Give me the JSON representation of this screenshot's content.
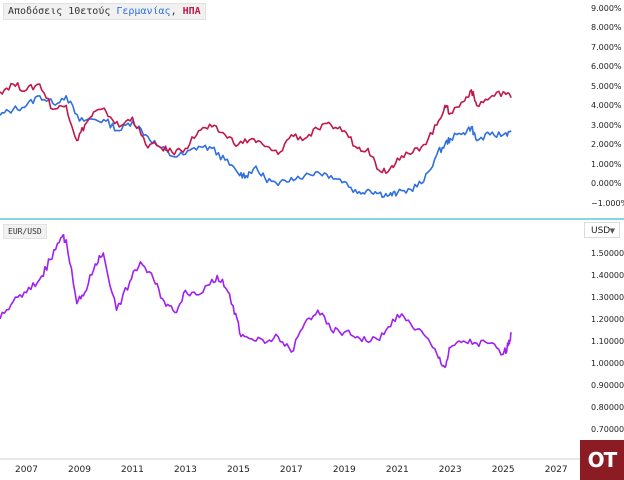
{
  "title": {
    "prefix": "Αποδόσεις 10ετούς ",
    "germany": "Γερμανίας",
    "separator": ", ",
    "usa": "ΗΠΑ"
  },
  "pair_label": "EUR/USD",
  "currency_select": {
    "value": "USD"
  },
  "logo_text": "OT",
  "colors": {
    "germany": "#2f6fe0",
    "usa": "#c0184a",
    "eurusd": "#a020f0",
    "separator_line": "#5bc8d6",
    "logo_bg": "#8c1c24"
  },
  "chart_data": [
    {
      "type": "line",
      "title": "Αποδόσεις 10ετούς Γερμανίας, ΗΠΑ",
      "y_tick_labels": [
        "9.000%",
        "8.000%",
        "7.000%",
        "6.000%",
        "5.000%",
        "4.000%",
        "3.000%",
        "2.000%",
        "1.000%",
        "0.000%",
        "−1.000%"
      ],
      "ylim": [
        -1.1,
        9.3
      ],
      "y_unit": "%",
      "series": [
        {
          "name": "Γερμανίας",
          "color": "#2f6fe0",
          "x": [
            2006.0,
            2006.5,
            2007.0,
            2007.5,
            2008.0,
            2008.5,
            2009.0,
            2009.5,
            2010.0,
            2010.5,
            2011.0,
            2011.5,
            2012.0,
            2012.5,
            2013.0,
            2013.5,
            2014.0,
            2014.5,
            2015.0,
            2015.3,
            2015.6,
            2016.0,
            2016.5,
            2017.0,
            2017.5,
            2018.0,
            2018.5,
            2019.0,
            2019.5,
            2019.9,
            2020.3,
            2020.7,
            2021.0,
            2021.5,
            2022.0,
            2022.5,
            2022.8,
            2023.0,
            2023.5,
            2023.8,
            2024.0,
            2024.5,
            2025.0,
            2025.3
          ],
          "y": [
            3.5,
            3.8,
            4.0,
            4.5,
            4.1,
            4.5,
            3.2,
            3.3,
            3.2,
            2.7,
            3.2,
            2.5,
            1.9,
            1.4,
            1.5,
            1.9,
            1.8,
            1.2,
            0.5,
            0.4,
            0.8,
            0.3,
            -0.1,
            0.3,
            0.4,
            0.6,
            0.4,
            0.1,
            -0.5,
            -0.3,
            -0.5,
            -0.6,
            -0.5,
            -0.3,
            0.1,
            1.5,
            2.0,
            2.3,
            2.6,
            2.9,
            2.2,
            2.5,
            2.5,
            2.7
          ]
        },
        {
          "name": "ΗΠΑ",
          "color": "#c0184a",
          "x": [
            2006.0,
            2006.5,
            2007.0,
            2007.5,
            2008.0,
            2008.5,
            2008.9,
            2009.2,
            2009.6,
            2010.0,
            2010.5,
            2011.0,
            2011.5,
            2012.0,
            2012.5,
            2013.0,
            2013.5,
            2014.0,
            2014.5,
            2015.0,
            2015.5,
            2016.0,
            2016.5,
            2017.0,
            2017.5,
            2018.0,
            2018.5,
            2019.0,
            2019.5,
            2019.9,
            2020.3,
            2020.7,
            2021.0,
            2021.5,
            2022.0,
            2022.5,
            2022.8,
            2023.0,
            2023.5,
            2023.8,
            2024.0,
            2024.5,
            2025.0,
            2025.3
          ],
          "y": [
            4.7,
            5.1,
            4.8,
            5.1,
            3.8,
            4.0,
            2.2,
            3.0,
            3.7,
            3.7,
            2.9,
            3.4,
            2.0,
            1.9,
            1.6,
            1.8,
            2.7,
            2.9,
            2.5,
            2.0,
            2.3,
            1.9,
            1.5,
            2.5,
            2.3,
            2.8,
            3.0,
            2.7,
            1.8,
            1.8,
            0.7,
            0.7,
            1.3,
            1.5,
            2.0,
            3.0,
            4.0,
            3.6,
            4.2,
            4.8,
            4.0,
            4.4,
            4.7,
            4.4
          ]
        }
      ]
    },
    {
      "type": "line",
      "legend": "EUR/USD",
      "y_tick_labels": [
        "1.50000",
        "1.40000",
        "1.30000",
        "1.20000",
        "1.10000",
        "1.00000",
        "0.90000",
        "0.80000",
        "0.70000"
      ],
      "ylim": [
        0.64,
        1.6
      ],
      "series": [
        {
          "color": "#a020f0",
          "x": [
            2006.0,
            2006.5,
            2007.0,
            2007.5,
            2007.9,
            2008.3,
            2008.5,
            2008.9,
            2009.2,
            2009.6,
            2009.9,
            2010.4,
            2010.9,
            2011.3,
            2011.8,
            2012.2,
            2012.6,
            2013.0,
            2013.5,
            2014.0,
            2014.4,
            2014.8,
            2015.1,
            2015.5,
            2016.0,
            2016.5,
            2017.0,
            2017.5,
            2018.0,
            2018.5,
            2019.0,
            2019.5,
            2020.0,
            2020.5,
            2021.0,
            2021.5,
            2022.0,
            2022.5,
            2022.8,
            2023.0,
            2023.5,
            2024.0,
            2024.5,
            2025.0,
            2025.2,
            2025.3
          ],
          "y": [
            1.2,
            1.28,
            1.32,
            1.38,
            1.47,
            1.57,
            1.56,
            1.27,
            1.32,
            1.45,
            1.5,
            1.24,
            1.37,
            1.46,
            1.38,
            1.28,
            1.23,
            1.33,
            1.31,
            1.38,
            1.38,
            1.26,
            1.12,
            1.11,
            1.09,
            1.12,
            1.05,
            1.18,
            1.24,
            1.15,
            1.14,
            1.12,
            1.1,
            1.13,
            1.22,
            1.18,
            1.13,
            1.04,
            0.98,
            1.07,
            1.1,
            1.09,
            1.09,
            1.04,
            1.08,
            1.14
          ]
        }
      ]
    }
  ],
  "x_axis": {
    "tick_labels": [
      "2007",
      "2009",
      "2011",
      "2013",
      "2015",
      "2017",
      "2019",
      "2021",
      "2023",
      "2025",
      "2027"
    ]
  }
}
